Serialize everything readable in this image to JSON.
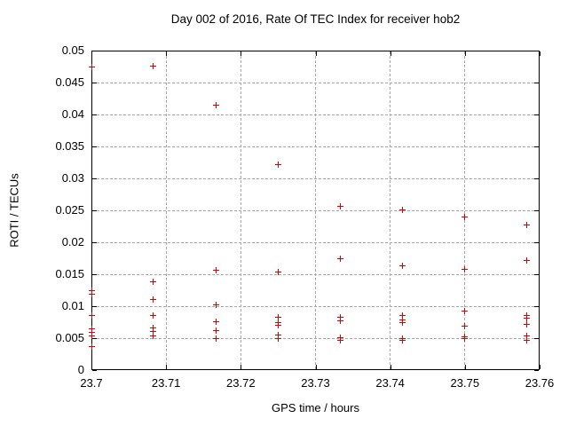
{
  "colors": {
    "background": "#ffffff",
    "border": "#000000",
    "grid": "#a8a8a8",
    "text": "#000000"
  },
  "chart_data": {
    "type": "scatter",
    "title": "Day 002 of 2016, Rate Of TEC Index for receiver hob2",
    "xlabel": "GPS time / hours",
    "ylabel": "ROTI / TECUs",
    "xlim": [
      23.7,
      23.76
    ],
    "ylim": [
      0,
      0.05
    ],
    "grid": true,
    "legend": "none",
    "x_tick_values": [
      23.7,
      23.71,
      23.72,
      23.73,
      23.74,
      23.75,
      23.76
    ],
    "x_tick_labels": [
      "23.7",
      "23.71",
      "23.72",
      "23.73",
      "23.74",
      "23.75",
      "23.76"
    ],
    "y_tick_values": [
      0,
      0.005,
      0.01,
      0.015,
      0.02,
      0.025,
      0.03,
      0.035,
      0.04,
      0.045,
      0.05
    ],
    "y_tick_labels": [
      "0",
      "0.005",
      "0.01",
      "0.015",
      "0.02",
      "0.025",
      "0.03",
      "0.035",
      "0.04",
      "0.045",
      "0.05"
    ],
    "series": [
      {
        "name": "ROTI",
        "marker": "plus",
        "color": "#e00000",
        "points": [
          [
            23.7,
            0.0474
          ],
          [
            23.7,
            0.0124
          ],
          [
            23.7,
            0.0119
          ],
          [
            23.7,
            0.0085
          ],
          [
            23.7,
            0.0064
          ],
          [
            23.7,
            0.0059
          ],
          [
            23.7,
            0.0053
          ],
          [
            23.7,
            0.0037
          ],
          [
            23.7083,
            0.0476
          ],
          [
            23.7083,
            0.0138
          ],
          [
            23.7083,
            0.011
          ],
          [
            23.7083,
            0.0085
          ],
          [
            23.7083,
            0.0066
          ],
          [
            23.7083,
            0.006
          ],
          [
            23.7083,
            0.0054
          ],
          [
            23.7167,
            0.0415
          ],
          [
            23.7167,
            0.0156
          ],
          [
            23.7167,
            0.0102
          ],
          [
            23.7167,
            0.0076
          ],
          [
            23.7167,
            0.0062
          ],
          [
            23.7167,
            0.0049
          ],
          [
            23.725,
            0.0322
          ],
          [
            23.725,
            0.0154
          ],
          [
            23.725,
            0.0082
          ],
          [
            23.725,
            0.0075
          ],
          [
            23.725,
            0.007
          ],
          [
            23.725,
            0.0055
          ],
          [
            23.725,
            0.0049
          ],
          [
            23.7333,
            0.0256
          ],
          [
            23.7333,
            0.0175
          ],
          [
            23.7333,
            0.0083
          ],
          [
            23.7333,
            0.0077
          ],
          [
            23.7333,
            0.0051
          ],
          [
            23.7333,
            0.0046
          ],
          [
            23.7417,
            0.0251
          ],
          [
            23.7417,
            0.0163
          ],
          [
            23.7417,
            0.0085
          ],
          [
            23.7417,
            0.0079
          ],
          [
            23.7417,
            0.0074
          ],
          [
            23.7417,
            0.005
          ],
          [
            23.7417,
            0.0046
          ],
          [
            23.75,
            0.0239
          ],
          [
            23.75,
            0.0157
          ],
          [
            23.75,
            0.0093
          ],
          [
            23.75,
            0.0069
          ],
          [
            23.75,
            0.0052
          ],
          [
            23.75,
            0.0049
          ],
          [
            23.7583,
            0.0227
          ],
          [
            23.7583,
            0.0172
          ],
          [
            23.7583,
            0.0085
          ],
          [
            23.7583,
            0.0081
          ],
          [
            23.7583,
            0.0071
          ],
          [
            23.7583,
            0.0053
          ],
          [
            23.7583,
            0.0046
          ]
        ]
      }
    ]
  }
}
